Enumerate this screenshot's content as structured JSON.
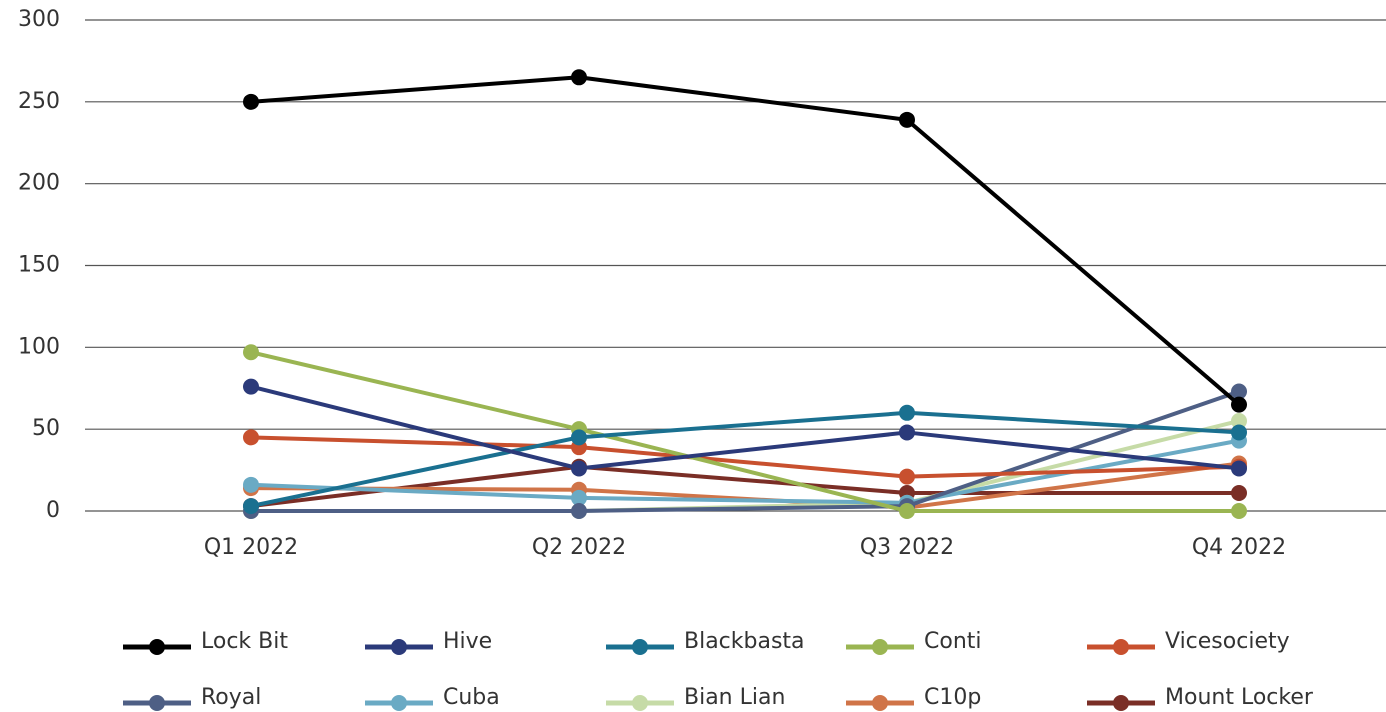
{
  "chart_data": {
    "type": "line",
    "categories": [
      "Q1 2022",
      "Q2 2022",
      "Q3 2022",
      "Q4 2022"
    ],
    "series": [
      {
        "name": "Lock Bit",
        "color": "#000000",
        "values": [
          250,
          265,
          239,
          65
        ]
      },
      {
        "name": "Hive",
        "color": "#2b3a7a",
        "values": [
          76,
          26,
          48,
          26
        ]
      },
      {
        "name": "Blackbasta",
        "color": "#1a7090",
        "values": [
          3,
          45,
          60,
          48
        ]
      },
      {
        "name": "Conti",
        "color": "#9ab552",
        "values": [
          97,
          50,
          0,
          0
        ]
      },
      {
        "name": "Vicesociety",
        "color": "#c8502e",
        "values": [
          45,
          39,
          21,
          27
        ]
      },
      {
        "name": "Royal",
        "color": "#4e5f85",
        "values": [
          0,
          0,
          3,
          73
        ]
      },
      {
        "name": "Cuba",
        "color": "#6aaac4",
        "values": [
          16,
          8,
          5,
          43
        ]
      },
      {
        "name": "Bian Lian",
        "color": "#c6dba7",
        "values": [
          0,
          0,
          5,
          55
        ]
      },
      {
        "name": "C10p",
        "color": "#d07448",
        "values": [
          14,
          13,
          2,
          29
        ]
      },
      {
        "name": "Mount Locker",
        "color": "#7a2e26",
        "values": [
          3,
          27,
          11,
          11
        ]
      }
    ],
    "ylim": [
      0,
      300
    ],
    "yticks": [
      0,
      50,
      100,
      150,
      200,
      250,
      300
    ],
    "grid": true
  }
}
